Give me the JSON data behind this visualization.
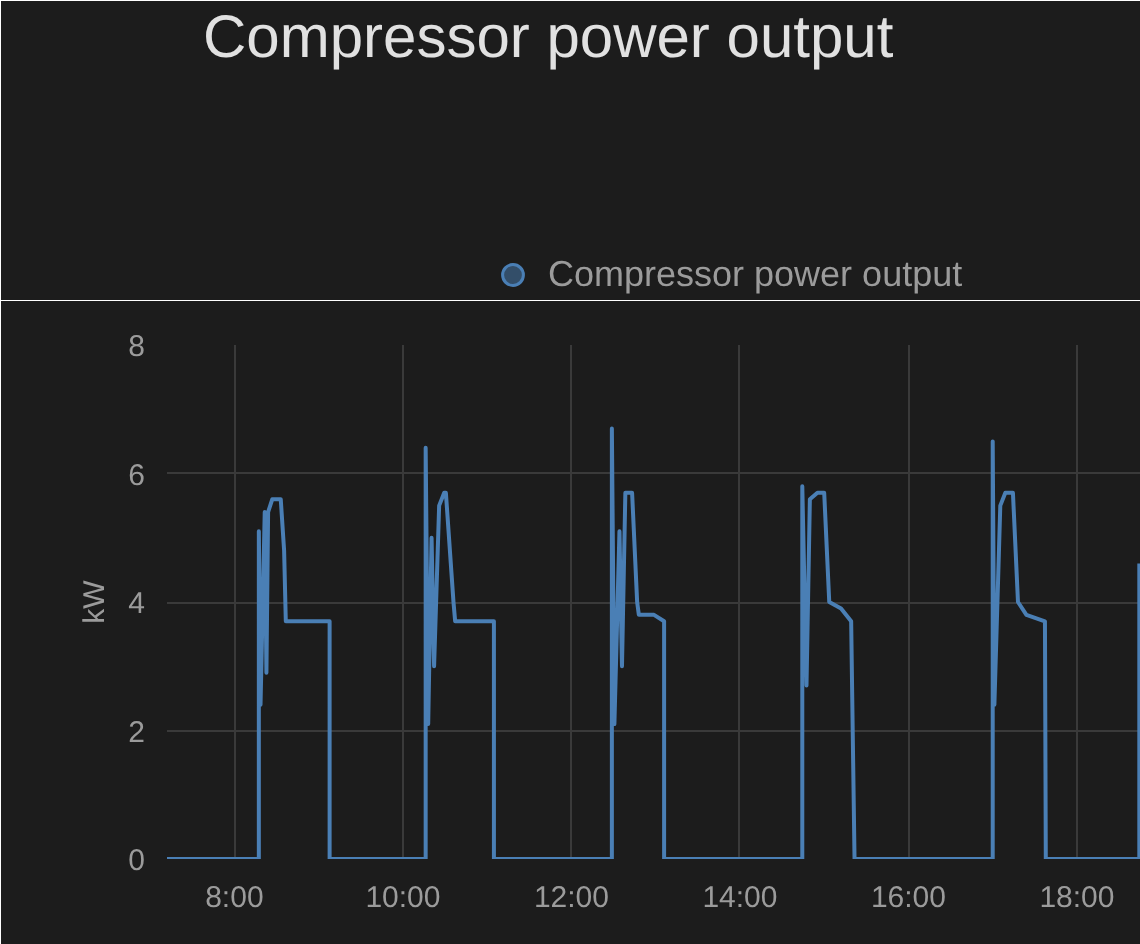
{
  "chart_data": {
    "type": "line",
    "title": "Compressor power output",
    "ylabel": "kW",
    "series": [
      {
        "name": "Compressor power output",
        "color": "#4a7fb5",
        "x": [
          7.2,
          8.29,
          8.29,
          8.31,
          8.36,
          8.38,
          8.4,
          8.45,
          8.55,
          8.59,
          8.61,
          9.13,
          9.13,
          10.27,
          10.27,
          10.3,
          10.34,
          10.37,
          10.43,
          10.49,
          10.51,
          10.6,
          10.62,
          11.08,
          11.08,
          12.48,
          12.48,
          12.51,
          12.57,
          12.6,
          12.64,
          12.72,
          12.78,
          12.8,
          12.98,
          13.1,
          13.1,
          14.74,
          14.74,
          14.79,
          14.83,
          14.92,
          15.0,
          15.06,
          15.2,
          15.32,
          15.36,
          17.0,
          17.0,
          17.02,
          17.09,
          17.15,
          17.24,
          17.3,
          17.4,
          17.62,
          17.63,
          18.74,
          18.74
        ],
        "values": [
          0,
          0,
          5.1,
          2.4,
          5.4,
          2.9,
          5.4,
          5.6,
          5.6,
          4.8,
          3.7,
          3.7,
          0,
          0,
          6.4,
          2.1,
          5.0,
          3.0,
          5.5,
          5.7,
          5.7,
          4.0,
          3.7,
          3.7,
          0,
          0,
          6.7,
          2.1,
          5.1,
          3.0,
          5.7,
          5.7,
          4.0,
          3.8,
          3.8,
          3.7,
          0,
          0,
          5.8,
          2.7,
          5.6,
          5.7,
          5.7,
          4.0,
          3.9,
          3.7,
          0,
          0,
          6.5,
          2.4,
          5.5,
          5.7,
          5.7,
          4.0,
          3.8,
          3.7,
          0,
          0,
          4.6
        ]
      }
    ],
    "xlim": [
      7.2,
      18.76
    ],
    "xticks": [
      {
        "value": 8,
        "label": "8:00"
      },
      {
        "value": 10,
        "label": "10:00"
      },
      {
        "value": 12,
        "label": "12:00"
      },
      {
        "value": 14,
        "label": "14:00"
      },
      {
        "value": 16,
        "label": "16:00"
      },
      {
        "value": 18,
        "label": "18:00"
      }
    ],
    "ylim": [
      0,
      8
    ],
    "yticks": [
      0,
      2,
      4,
      6,
      8
    ],
    "grid": true,
    "legend": "top",
    "marker": "none",
    "line_style": "solid"
  }
}
